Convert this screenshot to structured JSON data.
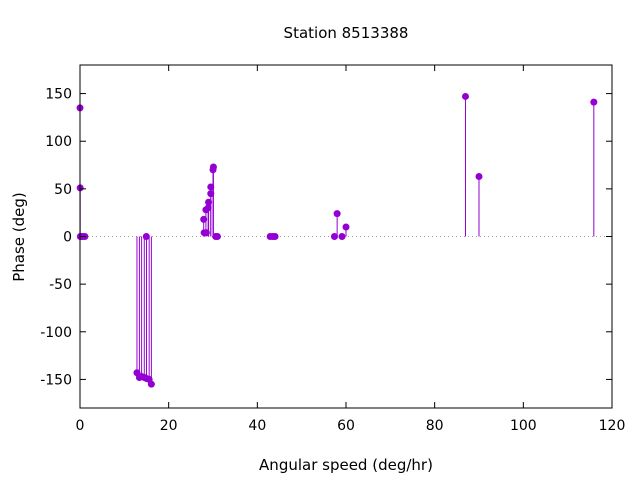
{
  "chart_data": {
    "type": "scatter",
    "style": "impulses-with-points",
    "title": "Station 8513388",
    "xlabel": "Angular speed (deg/hr)",
    "ylabel": "Phase (deg)",
    "xlim": [
      0,
      120
    ],
    "ylim": [
      -180,
      180
    ],
    "xticks": [
      0,
      20,
      40,
      60,
      80,
      100,
      120
    ],
    "yticks": [
      -150,
      -100,
      -50,
      0,
      50,
      100,
      150
    ],
    "zero_line": true,
    "grid": false,
    "color": "#9400d3",
    "points": [
      {
        "x": 0.0,
        "y": 135
      },
      {
        "x": 0.04,
        "y": 51
      },
      {
        "x": 0.08,
        "y": 0
      },
      {
        "x": 0.5,
        "y": 0
      },
      {
        "x": 0.55,
        "y": 0
      },
      {
        "x": 1.1,
        "y": 0
      },
      {
        "x": 12.85,
        "y": -143
      },
      {
        "x": 13.4,
        "y": -148
      },
      {
        "x": 13.9,
        "y": -147
      },
      {
        "x": 14.5,
        "y": -148
      },
      {
        "x": 14.96,
        "y": 0
      },
      {
        "x": 15.0,
        "y": -149
      },
      {
        "x": 15.6,
        "y": -150
      },
      {
        "x": 16.1,
        "y": -155
      },
      {
        "x": 27.9,
        "y": 18
      },
      {
        "x": 28.0,
        "y": 4
      },
      {
        "x": 28.4,
        "y": 28
      },
      {
        "x": 28.5,
        "y": 4
      },
      {
        "x": 28.9,
        "y": 30
      },
      {
        "x": 29.0,
        "y": 36
      },
      {
        "x": 29.5,
        "y": 52
      },
      {
        "x": 29.5,
        "y": 45
      },
      {
        "x": 30.0,
        "y": 70
      },
      {
        "x": 30.1,
        "y": 73
      },
      {
        "x": 30.6,
        "y": 0
      },
      {
        "x": 31.0,
        "y": 0
      },
      {
        "x": 42.9,
        "y": 0
      },
      {
        "x": 43.5,
        "y": 0
      },
      {
        "x": 44.0,
        "y": 0
      },
      {
        "x": 57.4,
        "y": 0
      },
      {
        "x": 58.0,
        "y": 24
      },
      {
        "x": 59.1,
        "y": 0
      },
      {
        "x": 60.0,
        "y": 10
      },
      {
        "x": 86.95,
        "y": 147
      },
      {
        "x": 90.0,
        "y": 63
      },
      {
        "x": 115.9,
        "y": 141
      }
    ]
  }
}
